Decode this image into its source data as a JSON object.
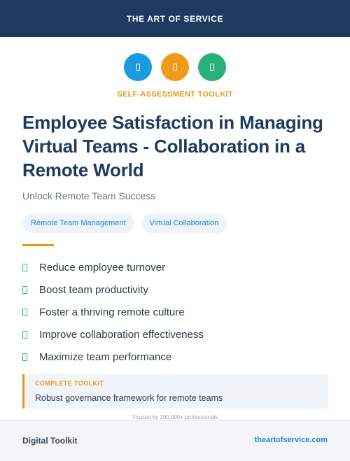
{
  "header": {
    "brand": "THE ART OF SERVICE"
  },
  "icons": [
    {
      "name": "blue-badge-icon",
      "color": "#1a9be0"
    },
    {
      "name": "orange-badge-icon",
      "color": "#ef9a18"
    },
    {
      "name": "green-badge-icon",
      "color": "#27b07a"
    }
  ],
  "kicker": "SELF-ASSESSMENT TOOLKIT",
  "title": "Employee Satisfaction in Managing Virtual Teams - Collaboration in a Remote World",
  "subtitle": "Unlock Remote Team Success",
  "tags": [
    "Remote Team Management",
    "Virtual Collaboration"
  ],
  "benefits": [
    "Reduce employee turnover",
    "Boost team productivity",
    "Foster a thriving remote culture",
    "Improve collaboration effectiveness",
    "Maximize team performance"
  ],
  "callout": {
    "label": "COMPLETE TOOLKIT",
    "text": "Robust governance framework for remote teams"
  },
  "trust": "Trusted by 100,000+ professionals",
  "footer": {
    "left": "Digital Toolkit",
    "right": "theartofservice.com"
  },
  "colors": {
    "navy": "#1e3a5f",
    "accent_orange": "#e39b1b",
    "link_blue": "#1a8ad6",
    "check_green": "#2bb67f"
  }
}
